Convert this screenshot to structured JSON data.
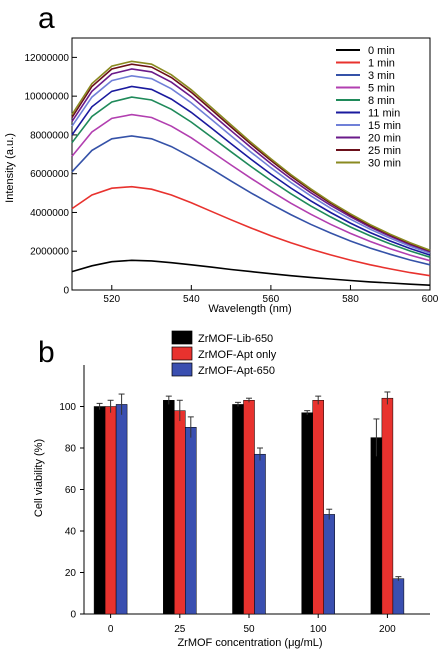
{
  "chart_data": [
    {
      "panel": "a",
      "type": "line",
      "xlabel": "Wavelength (nm)",
      "ylabel": "Intensity (a.u.)",
      "xlim": [
        510,
        600
      ],
      "ylim": [
        0,
        13000000
      ],
      "x_ticks": [
        "520",
        "540",
        "560",
        "580",
        "600"
      ],
      "y_ticks": [
        "0",
        "2000000",
        "4000000",
        "6000000",
        "8000000",
        "10000000",
        "12000000"
      ],
      "legend_position": "top-right",
      "x": [
        510,
        515,
        520,
        525,
        530,
        535,
        540,
        545,
        550,
        555,
        560,
        565,
        570,
        575,
        580,
        585,
        590,
        595,
        600
      ],
      "series": [
        {
          "name": "0 min",
          "color": "#000000",
          "values": [
            950000,
            1250000,
            1460000,
            1530000,
            1500000,
            1410000,
            1300000,
            1180000,
            1060000,
            950000,
            840000,
            740000,
            650000,
            570000,
            490000,
            420000,
            360000,
            300000,
            250000
          ]
        },
        {
          "name": "1 min",
          "color": "#e8322e",
          "values": [
            4200000,
            4900000,
            5250000,
            5330000,
            5200000,
            4900000,
            4500000,
            4060000,
            3620000,
            3200000,
            2800000,
            2440000,
            2110000,
            1810000,
            1540000,
            1300000,
            1090000,
            900000,
            740000
          ]
        },
        {
          "name": "3 min",
          "color": "#3552a8",
          "values": [
            6100000,
            7200000,
            7800000,
            7950000,
            7800000,
            7400000,
            6850000,
            6250000,
            5620000,
            5010000,
            4430000,
            3890000,
            3390000,
            2940000,
            2530000,
            2160000,
            1840000,
            1550000,
            1300000
          ]
        },
        {
          "name": "5 min",
          "color": "#b23fb0",
          "values": [
            6900000,
            8150000,
            8850000,
            9050000,
            8900000,
            8450000,
            7850000,
            7150000,
            6450000,
            5760000,
            5100000,
            4480000,
            3910000,
            3390000,
            2920000,
            2500000,
            2130000,
            1800000,
            1510000
          ]
        },
        {
          "name": "8 min",
          "color": "#1f8a5a",
          "values": [
            7600000,
            8950000,
            9700000,
            9950000,
            9800000,
            9320000,
            8660000,
            7900000,
            7130000,
            6370000,
            5650000,
            4970000,
            4340000,
            3770000,
            3250000,
            2790000,
            2380000,
            2010000,
            1690000
          ]
        },
        {
          "name": "11 min",
          "color": "#1a1a9e",
          "values": [
            8000000,
            9450000,
            10250000,
            10500000,
            10350000,
            9850000,
            9160000,
            8360000,
            7540000,
            6740000,
            5980000,
            5260000,
            4600000,
            4000000,
            3450000,
            2960000,
            2530000,
            2140000,
            1800000
          ]
        },
        {
          "name": "15 min",
          "color": "#7080d8",
          "values": [
            8450000,
            9950000,
            10800000,
            11050000,
            10900000,
            10380000,
            9650000,
            8810000,
            7950000,
            7110000,
            6310000,
            5550000,
            4860000,
            4220000,
            3650000,
            3130000,
            2670000,
            2260000,
            1900000
          ]
        },
        {
          "name": "20 min",
          "color": "#6a1a8a",
          "values": [
            8700000,
            10250000,
            11150000,
            11400000,
            11250000,
            10720000,
            9970000,
            9100000,
            8220000,
            7350000,
            6520000,
            5740000,
            5020000,
            4370000,
            3780000,
            3240000,
            2770000,
            2340000,
            1970000
          ]
        },
        {
          "name": "25 min",
          "color": "#6b0f1a",
          "values": [
            8900000,
            10500000,
            11400000,
            11650000,
            11500000,
            10960000,
            10200000,
            9310000,
            8410000,
            7520000,
            6680000,
            5880000,
            5150000,
            4480000,
            3870000,
            3320000,
            2840000,
            2400000,
            2020000
          ]
        },
        {
          "name": "30 min",
          "color": "#8a8a20",
          "values": [
            9050000,
            10650000,
            11550000,
            11800000,
            11650000,
            11100000,
            10330000,
            9430000,
            8520000,
            7620000,
            6770000,
            5960000,
            5220000,
            4540000,
            3930000,
            3370000,
            2880000,
            2440000,
            2050000
          ]
        }
      ]
    },
    {
      "panel": "b",
      "type": "bar",
      "xlabel": "ZrMOF concentration (μg/mL)",
      "ylabel": "Cell viability (%)",
      "ylim": [
        0,
        120
      ],
      "y_ticks": [
        "0",
        "20",
        "40",
        "60",
        "80",
        "100"
      ],
      "categories": [
        "0",
        "25",
        "50",
        "100",
        "200"
      ],
      "legend_position": "top-center",
      "series": [
        {
          "name": "ZrMOF-Lib-650",
          "color": "#000000",
          "values": [
            100,
            103,
            101,
            97,
            85
          ],
          "errors": [
            1.5,
            2.0,
            1.0,
            1.0,
            9.0
          ]
        },
        {
          "name": "ZrMOF-Apt only",
          "color": "#e8322e",
          "values": [
            100,
            98,
            103,
            103,
            104
          ],
          "errors": [
            3.0,
            5.0,
            1.0,
            2.0,
            3.0
          ]
        },
        {
          "name": "ZrMOF-Apt-650",
          "color": "#3a4fb0",
          "values": [
            101,
            90,
            77,
            48,
            17
          ],
          "errors": [
            5.0,
            5.0,
            3.0,
            2.5,
            1.0
          ]
        }
      ]
    }
  ]
}
